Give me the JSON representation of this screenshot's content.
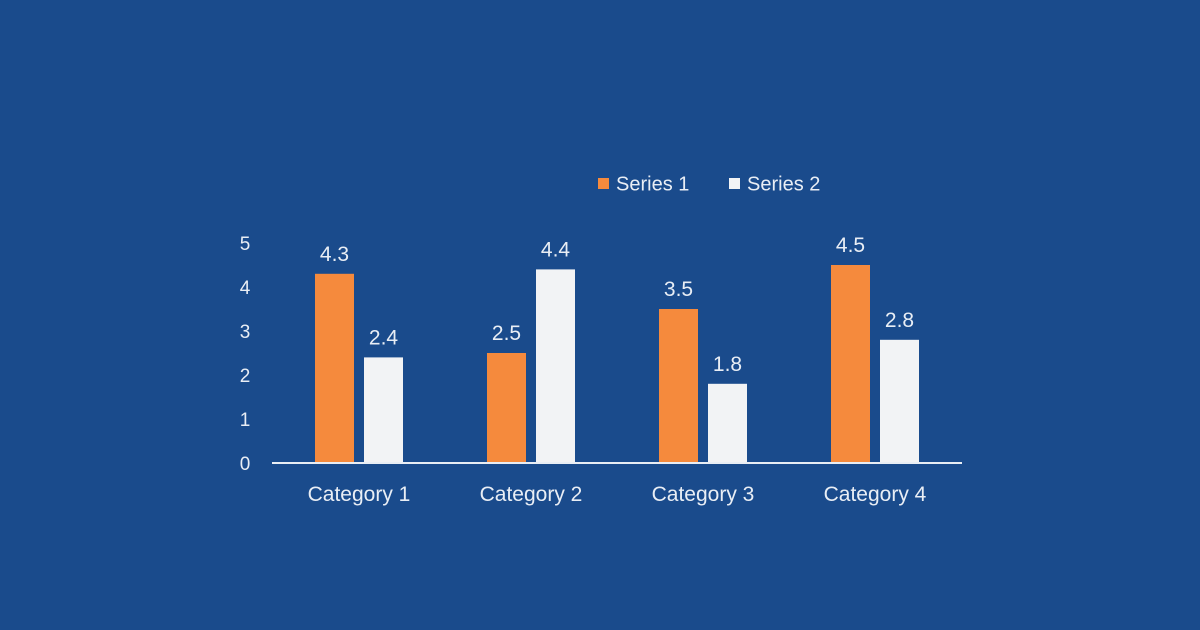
{
  "chart_data": {
    "type": "bar",
    "categories": [
      "Category 1",
      "Category 2",
      "Category 3",
      "Category 4"
    ],
    "series": [
      {
        "name": "Series 1",
        "values": [
          4.3,
          2.5,
          3.5,
          4.5
        ],
        "color": "#f58a3d"
      },
      {
        "name": "Series 2",
        "values": [
          2.4,
          4.4,
          1.8,
          2.8
        ],
        "color": "#f2f3f5"
      }
    ],
    "ylim": [
      0,
      5
    ],
    "yticks": [
      "0",
      "1",
      "2",
      "3",
      "4",
      "5"
    ],
    "data_labels": [
      [
        "4.3",
        "2.5",
        "3.5",
        "4.5"
      ],
      [
        "2.4",
        "4.4",
        "1.8",
        "2.8"
      ]
    ],
    "legend_position": "top",
    "grid": false,
    "background": "#1a4b8c",
    "axis_color": "#e9eef5"
  }
}
